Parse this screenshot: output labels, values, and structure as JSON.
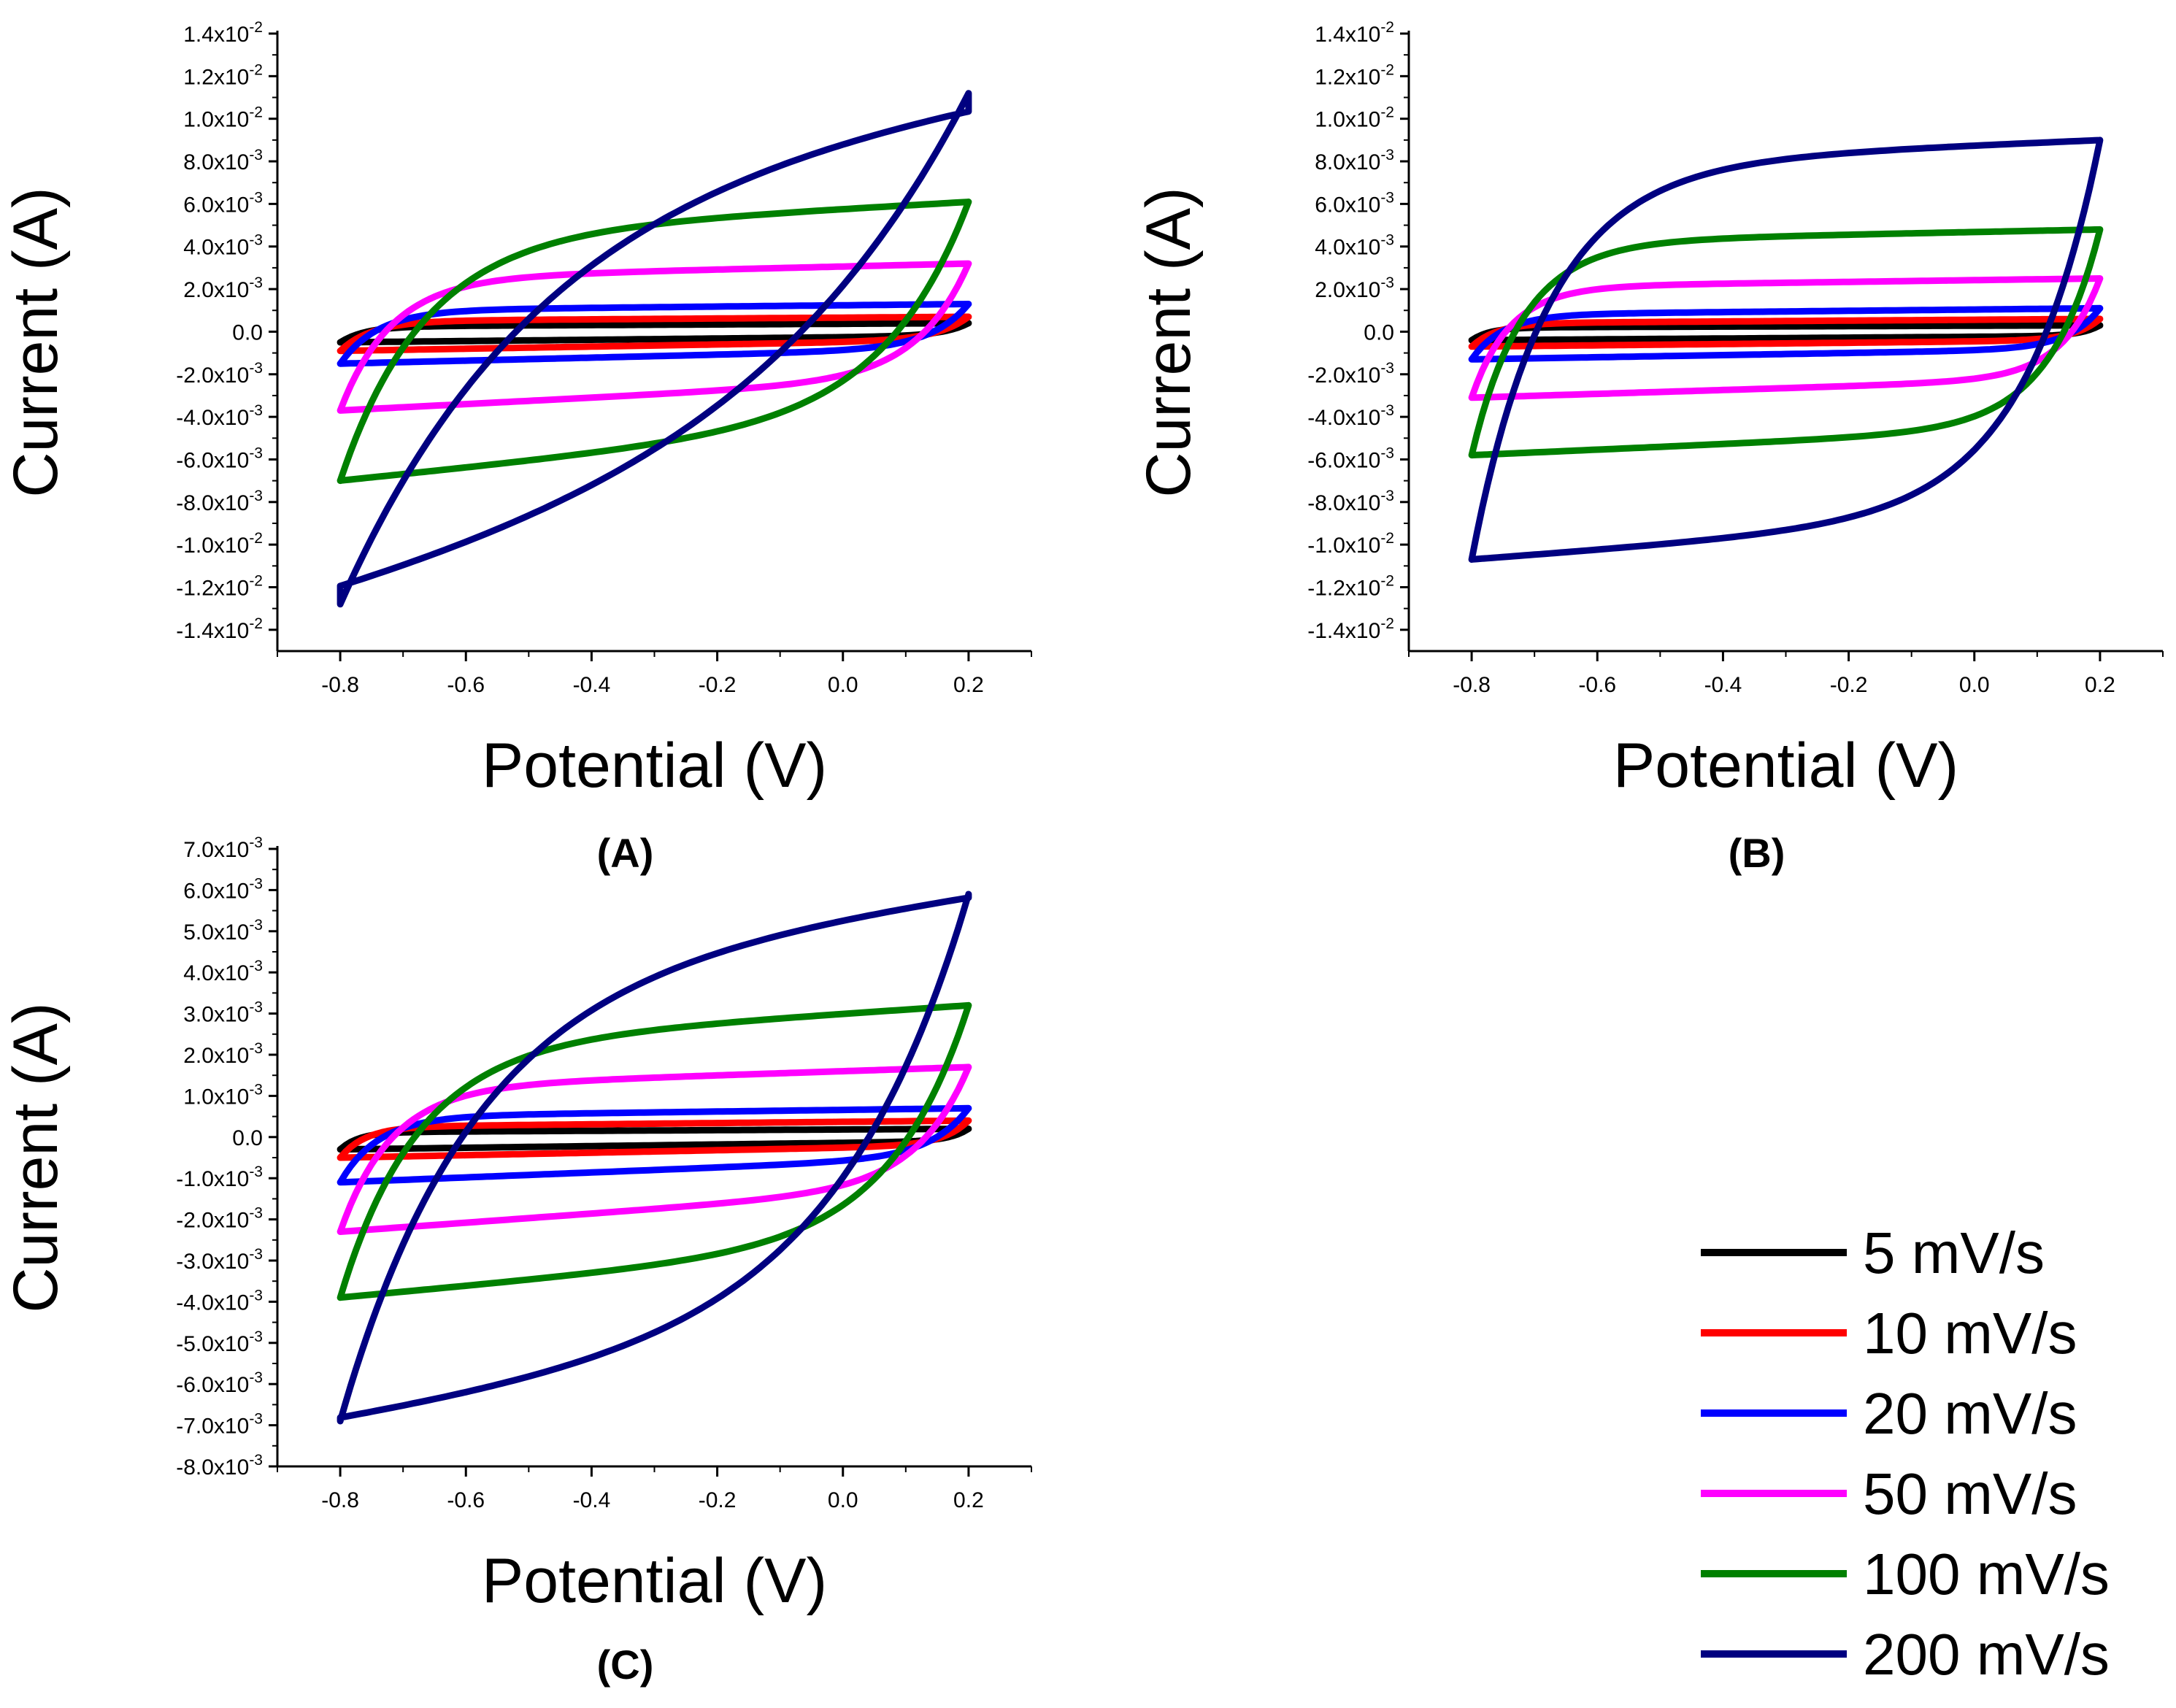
{
  "series_styles": [
    {
      "name": "5 mV/s",
      "color": "#000000"
    },
    {
      "name": "10 mV/s",
      "color": "#ff0000"
    },
    {
      "name": "20 mV/s",
      "color": "#0000ff"
    },
    {
      "name": "50 mV/s",
      "color": "#ff00ff"
    },
    {
      "name": "100 mV/s",
      "color": "#008000"
    },
    {
      "name": "200 mV/s",
      "color": "#000080"
    }
  ],
  "chart_data": [
    {
      "type": "line",
      "panel": "(A)",
      "xlabel": "Potential (V)",
      "ylabel": "Current (A)",
      "xlim": [
        -0.9,
        0.3
      ],
      "ylim": [
        -0.015,
        0.014
      ],
      "xticks": [
        -0.8,
        -0.6,
        -0.4,
        -0.2,
        0.0,
        0.2
      ],
      "xtick_labels": [
        "-0.8",
        "-0.6",
        "-0.4",
        "-0.2",
        "0.0",
        "0.2"
      ],
      "yticks": [
        {
          "value": 0.014,
          "mant": "1.4x10",
          "exp": "-2"
        },
        {
          "value": 0.012,
          "mant": "1.2x10",
          "exp": "-2"
        },
        {
          "value": 0.01,
          "mant": "1.0x10",
          "exp": "-2"
        },
        {
          "value": 0.008,
          "mant": "8.0x10",
          "exp": "-3"
        },
        {
          "value": 0.006,
          "mant": "6.0x10",
          "exp": "-3"
        },
        {
          "value": 0.004,
          "mant": "4.0x10",
          "exp": "-3"
        },
        {
          "value": 0.002,
          "mant": "2.0x10",
          "exp": "-3"
        },
        {
          "value": 0.0,
          "mant": "0.0",
          "exp": ""
        },
        {
          "value": -0.002,
          "mant": "-2.0x10",
          "exp": "-3"
        },
        {
          "value": -0.004,
          "mant": "-4.0x10",
          "exp": "-3"
        },
        {
          "value": -0.006,
          "mant": "-6.0x10",
          "exp": "-3"
        },
        {
          "value": -0.008,
          "mant": "-8.0x10",
          "exp": "-3"
        },
        {
          "value": -0.01,
          "mant": "-1.0x10",
          "exp": "-2"
        },
        {
          "value": -0.012,
          "mant": "-1.2x10",
          "exp": "-2"
        },
        {
          "value": -0.014,
          "mant": "-1.4x10",
          "exp": "-2"
        }
      ],
      "series": [
        {
          "name": "5 mV/s",
          "ox": [
            -0.8,
            0.2
          ],
          "oy": [
            0.00025,
            0.0004
          ],
          "rx": [
            0.2,
            -0.8
          ],
          "ry": [
            -0.0002,
            -0.0005
          ],
          "tau": 0.04
        },
        {
          "name": "10 mV/s",
          "ox": [
            -0.8,
            0.2
          ],
          "oy": [
            0.0005,
            0.0007
          ],
          "rx": [
            0.2,
            -0.8
          ],
          "ry": [
            -0.0004,
            -0.0009
          ],
          "tau": 0.05
        },
        {
          "name": "20 mV/s",
          "ox": [
            -0.8,
            0.2
          ],
          "oy": [
            0.001,
            0.0013
          ],
          "rx": [
            0.2,
            -0.8
          ],
          "ry": [
            -0.0008,
            -0.0015
          ],
          "tau": 0.06
        },
        {
          "name": "50 mV/s",
          "ox": [
            -0.8,
            0.2
          ],
          "oy": [
            0.0025,
            0.0032
          ],
          "rx": [
            0.2,
            -0.8
          ],
          "ry": [
            -0.0022,
            -0.0037
          ],
          "tau": 0.08
        },
        {
          "name": "100 mV/s",
          "ox": [
            -0.8,
            0.2
          ],
          "oy": [
            0.0045,
            0.0061
          ],
          "rx": [
            0.2,
            -0.8
          ],
          "ry": [
            -0.004,
            -0.007
          ],
          "tau": 0.13
        },
        {
          "name": "200 mV/s",
          "ox": [
            -0.8,
            0.2
          ],
          "oy": [
            0.0072,
            0.0112
          ],
          "rx": [
            0.2,
            -0.8
          ],
          "ry": [
            -0.006,
            -0.0128
          ],
          "tau": 0.3
        }
      ]
    },
    {
      "type": "line",
      "panel": "(B)",
      "xlabel": "Potential (V)",
      "ylabel": "Current (A)",
      "xlim": [
        -0.9,
        0.3
      ],
      "ylim": [
        -0.015,
        0.014
      ],
      "xticks": [
        -0.8,
        -0.6,
        -0.4,
        -0.2,
        0.0,
        0.2
      ],
      "xtick_labels": [
        "-0.8",
        "-0.6",
        "-0.4",
        "-0.2",
        "0.0",
        "0.2"
      ],
      "yticks": [
        {
          "value": 0.014,
          "mant": "1.4x10",
          "exp": "-2"
        },
        {
          "value": 0.012,
          "mant": "1.2x10",
          "exp": "-2"
        },
        {
          "value": 0.01,
          "mant": "1.0x10",
          "exp": "-2"
        },
        {
          "value": 0.008,
          "mant": "8.0x10",
          "exp": "-3"
        },
        {
          "value": 0.006,
          "mant": "6.0x10",
          "exp": "-3"
        },
        {
          "value": 0.004,
          "mant": "4.0x10",
          "exp": "-3"
        },
        {
          "value": 0.002,
          "mant": "2.0x10",
          "exp": "-3"
        },
        {
          "value": 0.0,
          "mant": "0.0",
          "exp": ""
        },
        {
          "value": -0.002,
          "mant": "-2.0x10",
          "exp": "-3"
        },
        {
          "value": -0.004,
          "mant": "-4.0x10",
          "exp": "-3"
        },
        {
          "value": -0.006,
          "mant": "-6.0x10",
          "exp": "-3"
        },
        {
          "value": -0.008,
          "mant": "-8.0x10",
          "exp": "-3"
        },
        {
          "value": -0.01,
          "mant": "-1.0x10",
          "exp": "-2"
        },
        {
          "value": -0.012,
          "mant": "-1.2x10",
          "exp": "-2"
        },
        {
          "value": -0.014,
          "mant": "-1.4x10",
          "exp": "-2"
        }
      ],
      "series": [
        {
          "name": "5 mV/s",
          "ox": [
            -0.8,
            0.2
          ],
          "oy": [
            0.0002,
            0.0003
          ],
          "rx": [
            0.2,
            -0.8
          ],
          "ry": [
            -0.0002,
            -0.0004
          ],
          "tau": 0.03
        },
        {
          "name": "10 mV/s",
          "ox": [
            -0.8,
            0.2
          ],
          "oy": [
            0.0004,
            0.0006
          ],
          "rx": [
            0.2,
            -0.8
          ],
          "ry": [
            -0.0004,
            -0.0007
          ],
          "tau": 0.04
        },
        {
          "name": "20 mV/s",
          "ox": [
            -0.8,
            0.2
          ],
          "oy": [
            0.0008,
            0.0011
          ],
          "rx": [
            0.2,
            -0.8
          ],
          "ry": [
            -0.0008,
            -0.0013
          ],
          "tau": 0.05
        },
        {
          "name": "50 mV/s",
          "ox": [
            -0.8,
            0.2
          ],
          "oy": [
            0.0021,
            0.0025
          ],
          "rx": [
            0.2,
            -0.8
          ],
          "ry": [
            -0.0022,
            -0.0031
          ],
          "tau": 0.06
        },
        {
          "name": "100 mV/s",
          "ox": [
            -0.8,
            0.2
          ],
          "oy": [
            0.0042,
            0.0048
          ],
          "rx": [
            0.2,
            -0.8
          ],
          "ry": [
            -0.0045,
            -0.0058
          ],
          "tau": 0.08
        },
        {
          "name": "200 mV/s",
          "ox": [
            -0.8,
            0.2
          ],
          "oy": [
            0.0078,
            0.009
          ],
          "rx": [
            0.2,
            -0.8
          ],
          "ry": [
            -0.0085,
            -0.0107
          ],
          "tau": 0.12
        }
      ]
    },
    {
      "type": "line",
      "panel": "(C)",
      "xlabel": "Potential (V)",
      "ylabel": "Current (A)",
      "xlim": [
        -0.9,
        0.3
      ],
      "ylim": [
        -0.008,
        0.007
      ],
      "xticks": [
        -0.8,
        -0.6,
        -0.4,
        -0.2,
        0.0,
        0.2
      ],
      "xtick_labels": [
        "-0.8",
        "-0.6",
        "-0.4",
        "-0.2",
        "0.0",
        "0.2"
      ],
      "yticks": [
        {
          "value": 0.007,
          "mant": "7.0x10",
          "exp": "-3"
        },
        {
          "value": 0.006,
          "mant": "6.0x10",
          "exp": "-3"
        },
        {
          "value": 0.005,
          "mant": "5.0x10",
          "exp": "-3"
        },
        {
          "value": 0.004,
          "mant": "4.0x10",
          "exp": "-3"
        },
        {
          "value": 0.003,
          "mant": "3.0x10",
          "exp": "-3"
        },
        {
          "value": 0.002,
          "mant": "2.0x10",
          "exp": "-3"
        },
        {
          "value": 0.001,
          "mant": "1.0x10",
          "exp": "-3"
        },
        {
          "value": 0.0,
          "mant": "0.0",
          "exp": ""
        },
        {
          "value": -0.001,
          "mant": "-1.0x10",
          "exp": "-3"
        },
        {
          "value": -0.002,
          "mant": "-2.0x10",
          "exp": "-3"
        },
        {
          "value": -0.003,
          "mant": "-3.0x10",
          "exp": "-3"
        },
        {
          "value": -0.004,
          "mant": "-4.0x10",
          "exp": "-3"
        },
        {
          "value": -0.005,
          "mant": "-5.0x10",
          "exp": "-3"
        },
        {
          "value": -0.006,
          "mant": "-6.0x10",
          "exp": "-3"
        },
        {
          "value": -0.007,
          "mant": "-7.0x10",
          "exp": "-3"
        },
        {
          "value": -0.008,
          "mant": "-8.0x10",
          "exp": "-3"
        }
      ],
      "series": [
        {
          "name": "5 mV/s",
          "ox": [
            -0.8,
            0.2
          ],
          "oy": [
            0.00012,
            0.0002
          ],
          "rx": [
            0.2,
            -0.8
          ],
          "ry": [
            -0.0001,
            -0.0003
          ],
          "tau": 0.03
        },
        {
          "name": "10 mV/s",
          "ox": [
            -0.8,
            0.2
          ],
          "oy": [
            0.00025,
            0.0004
          ],
          "rx": [
            0.2,
            -0.8
          ],
          "ry": [
            -0.0002,
            -0.0005
          ],
          "tau": 0.04
        },
        {
          "name": "20 mV/s",
          "ox": [
            -0.8,
            0.2
          ],
          "oy": [
            0.0005,
            0.0007
          ],
          "rx": [
            0.2,
            -0.8
          ],
          "ry": [
            -0.0005,
            -0.0011
          ],
          "tau": 0.06
        },
        {
          "name": "50 mV/s",
          "ox": [
            -0.8,
            0.2
          ],
          "oy": [
            0.0012,
            0.0017
          ],
          "rx": [
            0.2,
            -0.8
          ],
          "ry": [
            -0.0012,
            -0.0023
          ],
          "tau": 0.08
        },
        {
          "name": "100 mV/s",
          "ox": [
            -0.8,
            0.2
          ],
          "oy": [
            0.0022,
            0.0032
          ],
          "rx": [
            0.2,
            -0.8
          ],
          "ry": [
            -0.0025,
            -0.0039
          ],
          "tau": 0.12
        },
        {
          "name": "200 mV/s",
          "ox": [
            -0.8,
            0.2
          ],
          "oy": [
            0.0038,
            0.0059
          ],
          "rx": [
            0.2,
            -0.8
          ],
          "ry": [
            -0.0045,
            -0.0069
          ],
          "tau": 0.2
        }
      ]
    }
  ]
}
